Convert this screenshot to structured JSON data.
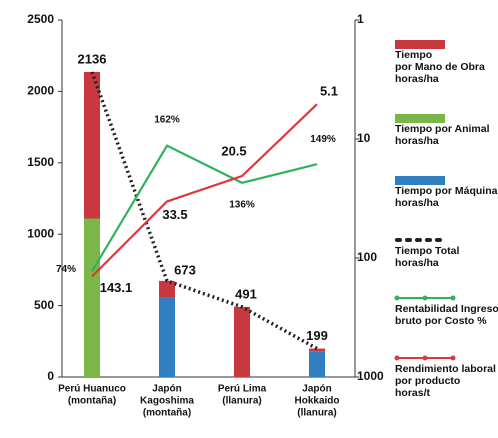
{
  "chart_data": {
    "type": "bar",
    "categories": [
      [
        "Perú Huanuco",
        "(montaña)"
      ],
      [
        "Japón",
        "Kagoshima",
        "(montaña)"
      ],
      [
        "Perú Lima",
        "(llanura)"
      ],
      [
        "Japón",
        "Hokkaido",
        "(llanura)"
      ]
    ],
    "ylim": [
      0,
      2500
    ],
    "yticks": [
      0,
      500,
      1000,
      1500,
      2000,
      2500
    ],
    "y2lim": [
      1,
      1000
    ],
    "y2ticks": [
      1,
      10,
      100,
      1000
    ],
    "y2log": true,
    "y2reversed": true,
    "y3lim": [
      0,
      250
    ],
    "series": [
      {
        "name": [
          "Tiempo",
          "por Mano de Obra",
          "horas/ha"
        ],
        "color": "#c8383e",
        "values": [
          1026,
          113,
          491,
          19
        ]
      },
      {
        "name": [
          "Tiempo por Animal",
          "horas/ha"
        ],
        "color": "#7ab648",
        "values": [
          1110,
          0,
          0,
          0
        ]
      },
      {
        "name": [
          "Tiempo por Máquina",
          "horas/ha"
        ],
        "color": "#2f7fc1",
        "values": [
          0,
          560,
          0,
          180
        ]
      },
      {
        "name": [
          "Tiempo Total",
          "horas/ha"
        ],
        "type": "dotted",
        "color": "#222222",
        "values": [
          2136,
          673,
          491,
          199
        ]
      },
      {
        "name": [
          "Rentabilidad Ingreso",
          "bruto por Costo %"
        ],
        "type": "line",
        "axis": "y3",
        "color": "#2fb35a",
        "values": [
          74,
          162,
          136,
          149
        ],
        "value_labels": [
          "74%",
          "162%",
          "136%",
          "149%"
        ]
      },
      {
        "name": [
          "Rendimiento laboral",
          "por producto",
          "horas/t"
        ],
        "type": "line",
        "axis": "y2",
        "color": "#e0363c",
        "values": [
          143.1,
          33.5,
          20.5,
          5.1
        ]
      }
    ]
  }
}
